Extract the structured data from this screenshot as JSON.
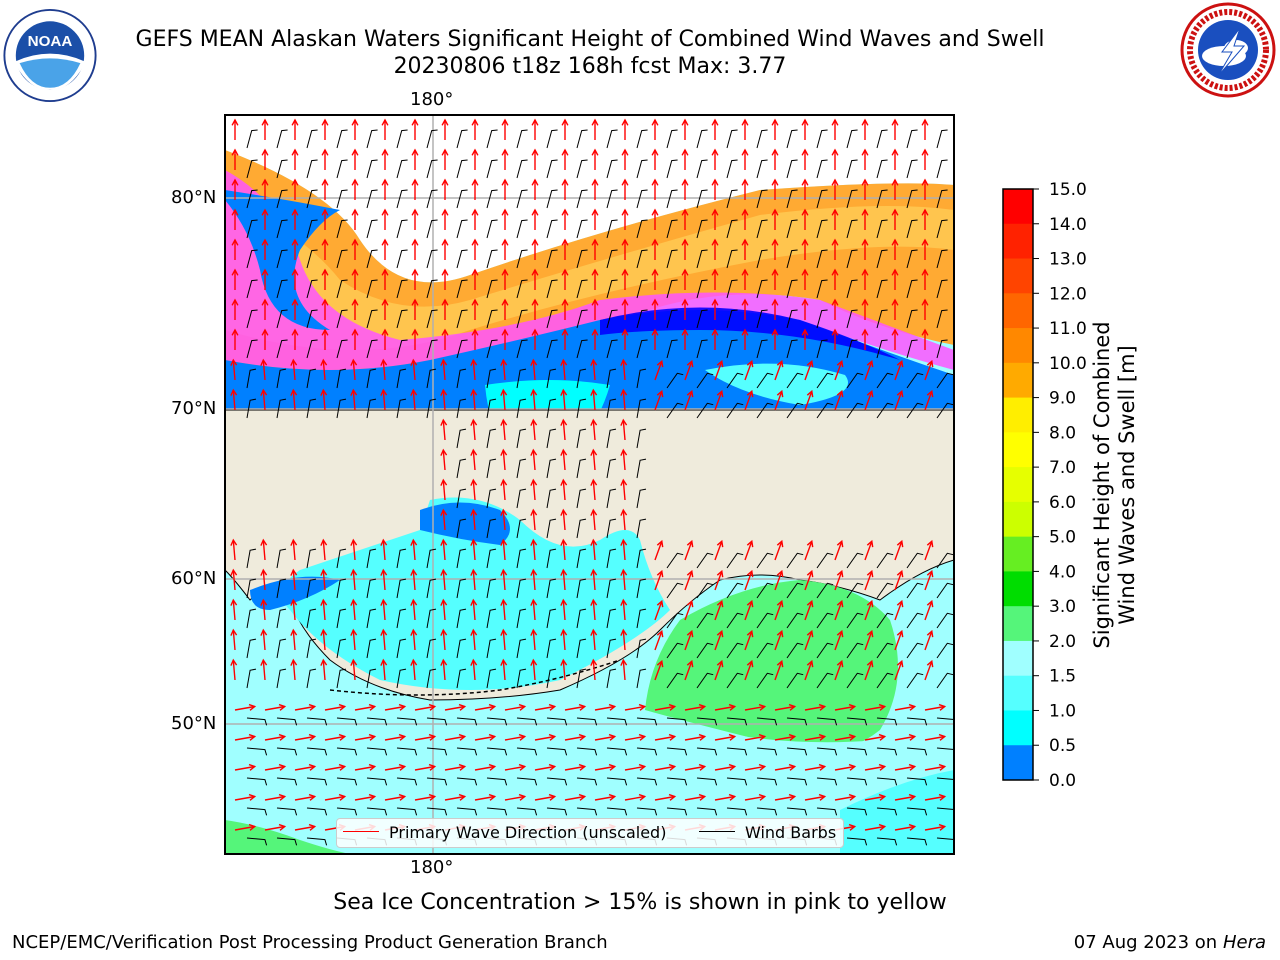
{
  "header": {
    "title_line1": "GEFS MEAN Alaskan Waters Significant Height of Combined Wind Waves and Swell",
    "title_line2": "20230806 t18z 168h fcst   Max: 3.77"
  },
  "logos": {
    "left": {
      "name": "noaa-logo",
      "text": "NOAA",
      "ring_text": "NATIONAL OCEANIC AND ATMOSPHERIC ADMINISTRATION · U.S. DEPARTMENT OF COMMERCE"
    },
    "right": {
      "name": "nws-logo",
      "ring_text": "NATIONAL WEATHER SERVICE"
    }
  },
  "map": {
    "lon_labels": [
      "180°",
      "180°"
    ],
    "lat_labels": [
      "80°N",
      "70°N",
      "60°N",
      "50°N"
    ],
    "land_color": "#efebdc",
    "colors": {
      "deep_blue": "#0000ff",
      "blue": "#0080ff",
      "cyan": "#00ffff",
      "light_cyan": "#55ffff",
      "pale_cyan": "#a0ffff",
      "green": "#55f57a",
      "ice_pink": "#ff55ff",
      "ice_orange": "#ffaa33",
      "ice_yellow": "#ffdd00"
    }
  },
  "legend": {
    "wave_direction": "Primary Wave Direction (unscaled)",
    "wind_barbs": "Wind Barbs",
    "wave_color": "#ff0000",
    "barb_color": "#000000"
  },
  "colorbar": {
    "title_line1": "Significant Height of Combined",
    "title_line2": "Wind Waves and Swell [m]",
    "ticks": [
      "15.0",
      "14.0",
      "13.0",
      "12.0",
      "11.0",
      "10.0",
      "9.0",
      "8.0",
      "7.0",
      "6.0",
      "5.0",
      "4.0",
      "3.0",
      "2.0",
      "1.5",
      "1.0",
      "0.5",
      "0.0"
    ],
    "colors_top_to_bottom": [
      "#ff0000",
      "#ff2200",
      "#ff4400",
      "#ff6600",
      "#ff8800",
      "#ffaa00",
      "#ffee00",
      "#ffff00",
      "#e6ff00",
      "#ccff00",
      "#66ee22",
      "#00dd00",
      "#55f57a",
      "#a0ffff",
      "#55ffff",
      "#00ffff",
      "#0080ff",
      "#0000ff"
    ]
  },
  "notes": {
    "sea_ice": "Sea Ice Concentration > 15% is shown in pink to yellow"
  },
  "footer": {
    "left": "NCEP/EMC/Verification Post Processing Product Generation Branch",
    "right_date": "07 Aug 2023 on",
    "right_host": "Hera"
  }
}
